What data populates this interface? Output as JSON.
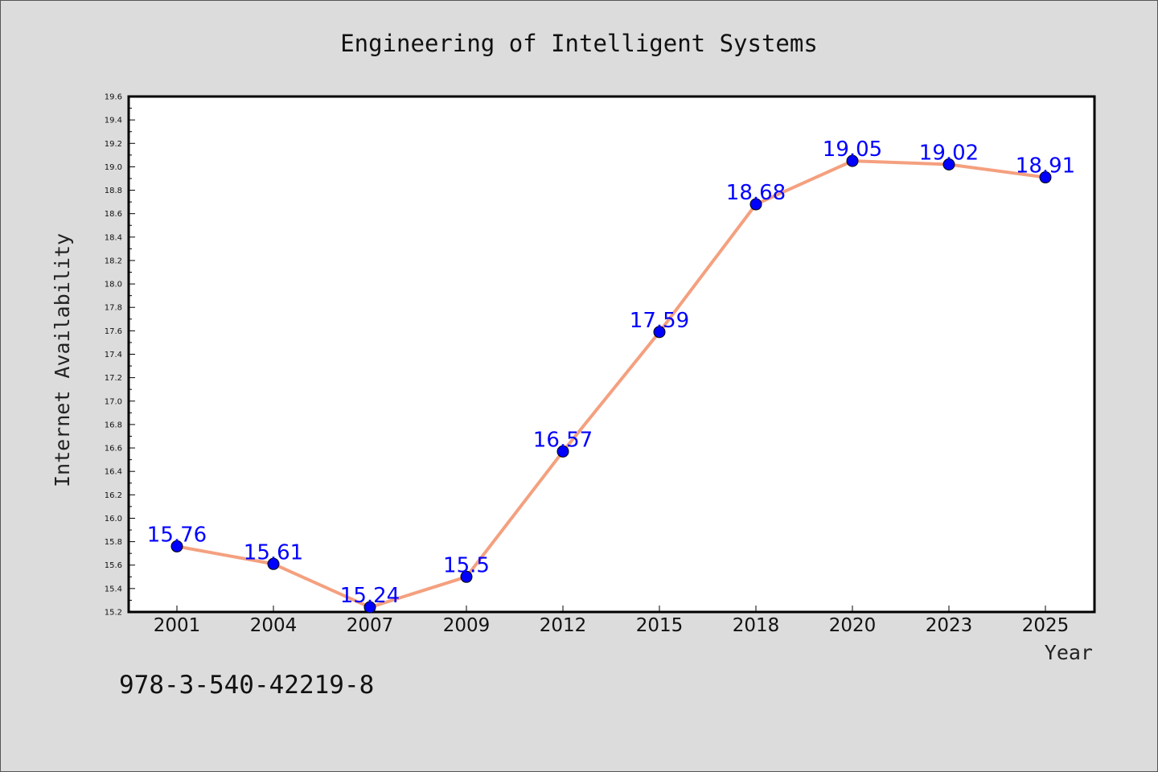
{
  "chart_data": {
    "type": "line",
    "title": "Engineering of Intelligent Systems",
    "xlabel": "Year",
    "ylabel": "Internet Availability",
    "categories": [
      "2001",
      "2004",
      "2007",
      "2009",
      "2012",
      "2015",
      "2018",
      "2020",
      "2023",
      "2025"
    ],
    "series": [
      {
        "values": [
          15.76,
          15.61,
          15.24,
          15.5,
          16.57,
          17.59,
          18.68,
          19.05,
          19.02,
          18.91
        ],
        "data_labels": [
          "15.76",
          "15.61",
          "15.24",
          "15.5",
          "16.57",
          "17.59",
          "18.68",
          "19.05",
          "19.02",
          "18.91"
        ]
      }
    ],
    "ylim": [
      15.2,
      19.6
    ],
    "yticks": [
      "15.2",
      "15.4",
      "15.6",
      "15.8",
      "16.0",
      "16.2",
      "16.4",
      "16.6",
      "16.8",
      "17.0",
      "17.2",
      "17.4",
      "17.6",
      "17.8",
      "18.0",
      "18.2",
      "18.4",
      "18.6",
      "18.8",
      "19.0",
      "19.2",
      "19.4",
      "19.6"
    ],
    "grid": false,
    "line_color": "#f4a07f",
    "marker_color": "#0000ff",
    "label_color": "#0000ff"
  },
  "footer": {
    "code": "978-3-540-42219-8"
  }
}
